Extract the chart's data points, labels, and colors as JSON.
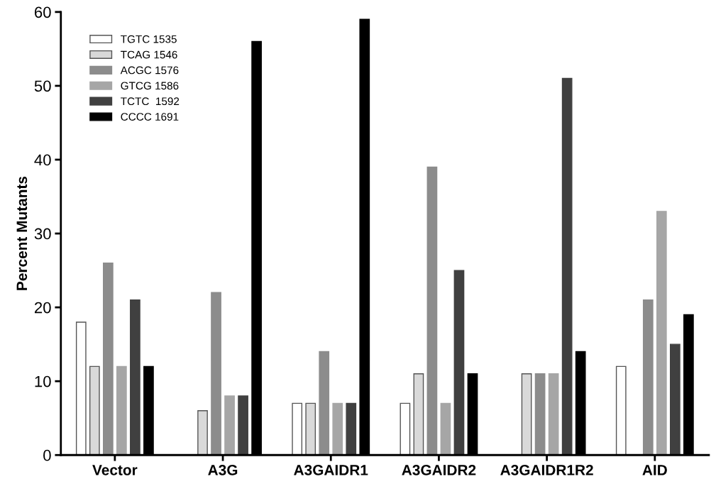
{
  "chart_data": {
    "type": "bar",
    "ylabel": "Percent Mutants",
    "categories": [
      "Vector",
      "A3G",
      "A3GAIDR1",
      "A3GAIDR2",
      "A3GAIDR1R2",
      "AID"
    ],
    "series": [
      {
        "name": "TGTC 1535",
        "color": "#ffffff",
        "values": [
          18,
          null,
          7,
          7,
          null,
          12
        ]
      },
      {
        "name": "TCAG 1546",
        "color": "#d9d9d9",
        "values": [
          12,
          6,
          7,
          11,
          11,
          null
        ]
      },
      {
        "name": "ACGC 1576",
        "color": "#8c8c8c",
        "values": [
          26,
          22,
          14,
          39,
          11,
          21
        ]
      },
      {
        "name": "GTCG 1586",
        "color": "#a6a6a6",
        "values": [
          12,
          8,
          7,
          7,
          11,
          33
        ]
      },
      {
        "name": "TCTC  1592",
        "color": "#404040",
        "values": [
          21,
          8,
          7,
          25,
          51,
          15
        ]
      },
      {
        "name": "CCCC 1691",
        "color": "#000000",
        "values": [
          12,
          56,
          59,
          11,
          14,
          19
        ]
      }
    ],
    "ylim": [
      0,
      60
    ],
    "yticks": [
      0,
      10,
      20,
      30,
      40,
      50,
      60
    ],
    "grid": false,
    "legend": "top left"
  }
}
